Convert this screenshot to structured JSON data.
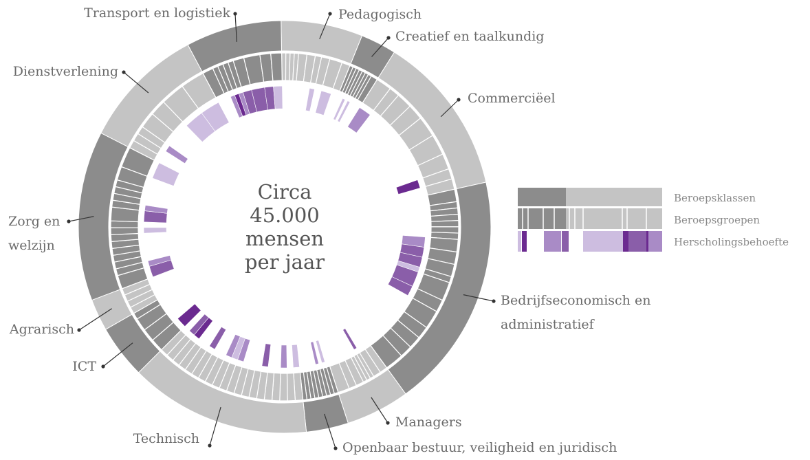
{
  "chart_data": {
    "type": "sunburst",
    "center_text": "Circa 45.000 mensen per jaar",
    "level_colors": [
      "#cdbde0",
      "#a98bc6",
      "#8a5ea9",
      "#6b2a90"
    ],
    "class_colors": [
      "#c4c4c4",
      "#8c8c8c"
    ],
    "legend": [
      "Beroepsklassen",
      "Beroepsgroepen",
      "Herscholingsbehoefte"
    ],
    "classes": [
      {
        "name": "Pedagogisch",
        "share": 6.4,
        "tone": 0,
        "groups": [
          1,
          1,
          1,
          1,
          2,
          2,
          1.5,
          2,
          3,
          2
        ],
        "needs": [
          0,
          0,
          0,
          0,
          0,
          0,
          1,
          0,
          1,
          0
        ]
      },
      {
        "name": "Creatief en taalkundig",
        "share": 2.8,
        "tone": 1,
        "groups": [
          1,
          1,
          1,
          1,
          1,
          1,
          1,
          2
        ],
        "needs": [
          0,
          0,
          1,
          0,
          1,
          0,
          0,
          0
        ]
      },
      {
        "name": "Commerciëel",
        "share": 12.6,
        "tone": 0,
        "groups": [
          3,
          2,
          3,
          3,
          4,
          4,
          3,
          2,
          2
        ],
        "needs": [
          2,
          0,
          0,
          0,
          0,
          0,
          0,
          4,
          0
        ]
      },
      {
        "name": "Bedrijfseconomisch en administratief",
        "share": 18.5,
        "tone": 1,
        "groups": [
          2,
          1,
          1,
          1,
          1,
          1,
          1,
          2,
          2,
          2,
          1,
          3,
          2,
          3,
          2,
          2,
          2,
          3
        ],
        "needs": [
          0,
          0,
          0,
          0,
          0,
          0,
          0,
          2,
          3,
          3,
          1,
          3,
          3,
          0,
          0,
          0,
          0,
          0
        ]
      },
      {
        "name": "Managers",
        "share": 5,
        "tone": 0,
        "groups": [
          2,
          2,
          1,
          1,
          1,
          2,
          2,
          3
        ],
        "needs": [
          0,
          0,
          3,
          0,
          0,
          0,
          0,
          0
        ]
      },
      {
        "name": "Openbaar bestuur, veiligheid en juridisch",
        "share": 3.3,
        "tone": 1,
        "groups": [
          1,
          1,
          1,
          1,
          1,
          1,
          1,
          1,
          1
        ],
        "needs": [
          0,
          1,
          0,
          2,
          0,
          0,
          0,
          0,
          0
        ]
      },
      {
        "name": "Technisch",
        "share": 14.2,
        "tone": 0,
        "groups": [
          1,
          1,
          1,
          1,
          1,
          1,
          1,
          1,
          1,
          1,
          1,
          1,
          1,
          1,
          1,
          1,
          1,
          1,
          1,
          1
        ],
        "needs": [
          1,
          0,
          2,
          0,
          0,
          3,
          0,
          0,
          0,
          2,
          1,
          2,
          0,
          0,
          3,
          0,
          0,
          4,
          3,
          0
        ]
      },
      {
        "name": "ICT",
        "share": 4.2,
        "tone": 1,
        "groups": [
          2,
          2,
          2,
          1
        ],
        "needs": [
          4,
          0,
          0,
          0
        ]
      },
      {
        "name": "Agrarisch",
        "share": 2.5,
        "tone": 0,
        "groups": [
          1,
          1,
          1,
          1
        ],
        "needs": [
          0,
          0,
          0,
          0
        ]
      },
      {
        "name": "Zorg en welzijn",
        "share": 13.3,
        "tone": 1,
        "groups": [
          2,
          1,
          1,
          1,
          1,
          1,
          1,
          1,
          1,
          2,
          1,
          1,
          1,
          1,
          2,
          3
        ],
        "needs": [
          3,
          2,
          0,
          0,
          0,
          0,
          0,
          1,
          0,
          3,
          2,
          0,
          0,
          0,
          0,
          1
        ]
      },
      {
        "name": "Dienstverlening",
        "share": 9.7,
        "tone": 0,
        "groups": [
          1,
          1,
          1,
          2,
          2,
          3,
          3
        ],
        "needs": [
          0,
          0,
          2,
          0,
          0,
          1,
          1
        ]
      },
      {
        "name": "Transport en logistiek",
        "share": 7.5,
        "tone": 1,
        "groups": [
          2,
          1,
          1,
          1,
          1,
          2,
          3,
          2,
          2
        ],
        "needs": [
          0,
          0,
          2,
          4,
          2,
          3,
          3,
          3,
          1
        ]
      }
    ]
  }
}
